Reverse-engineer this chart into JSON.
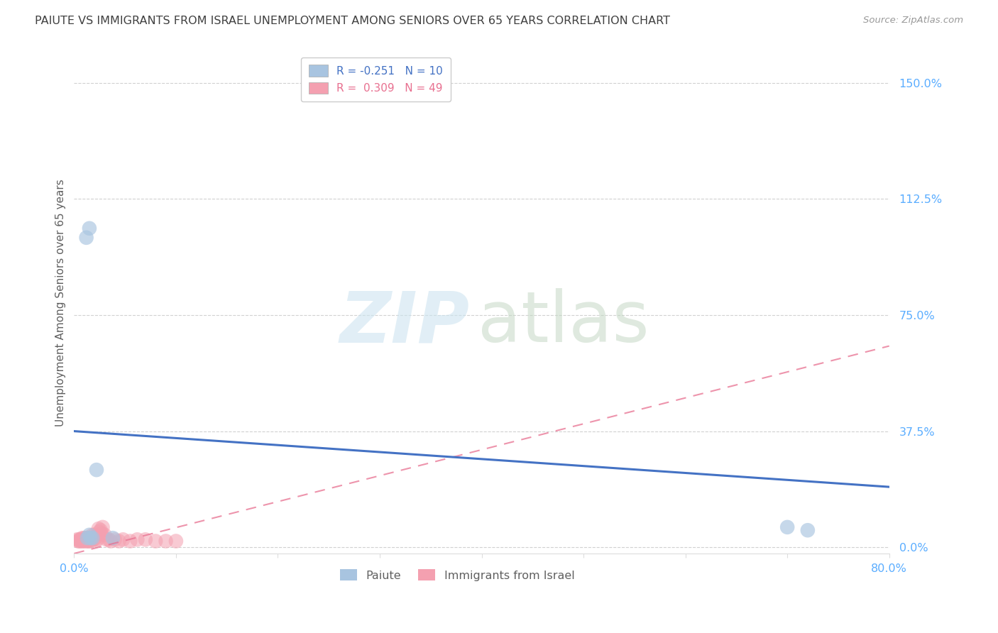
{
  "title": "PAIUTE VS IMMIGRANTS FROM ISRAEL UNEMPLOYMENT AMONG SENIORS OVER 65 YEARS CORRELATION CHART",
  "source": "Source: ZipAtlas.com",
  "ylabel": "Unemployment Among Seniors over 65 years",
  "ytick_labels": [
    "0.0%",
    "37.5%",
    "75.0%",
    "112.5%",
    "150.0%"
  ],
  "ytick_values": [
    0.0,
    0.375,
    0.75,
    1.125,
    1.5
  ],
  "xlim": [
    0.0,
    0.8
  ],
  "ylim": [
    -0.02,
    1.6
  ],
  "paiute_R": -0.251,
  "paiute_N": 10,
  "israel_R": 0.309,
  "israel_N": 49,
  "paiute_color": "#a8c4e0",
  "israel_color": "#f4a0b0",
  "trendline_paiute_color": "#4472c4",
  "trendline_israel_color": "#e87090",
  "background_color": "#ffffff",
  "grid_color": "#cccccc",
  "title_color": "#404040",
  "axis_label_color": "#606060",
  "tick_color": "#5aadff",
  "paiute_scatter_x": [
    0.012,
    0.015,
    0.7,
    0.72,
    0.015,
    0.018,
    0.013,
    0.022,
    0.038,
    0.016
  ],
  "paiute_scatter_y": [
    1.0,
    1.03,
    0.065,
    0.055,
    0.04,
    0.03,
    0.03,
    0.25,
    0.03,
    0.03
  ],
  "israel_scatter_x": [
    0.003,
    0.004,
    0.005,
    0.005,
    0.006,
    0.006,
    0.007,
    0.008,
    0.008,
    0.009,
    0.009,
    0.01,
    0.01,
    0.011,
    0.011,
    0.012,
    0.012,
    0.013,
    0.013,
    0.014,
    0.014,
    0.015,
    0.015,
    0.016,
    0.017,
    0.018,
    0.019,
    0.02,
    0.021,
    0.022,
    0.023,
    0.024,
    0.025,
    0.026,
    0.027,
    0.028,
    0.03,
    0.032,
    0.034,
    0.036,
    0.04,
    0.044,
    0.048,
    0.055,
    0.062,
    0.07,
    0.08,
    0.09,
    0.1
  ],
  "israel_scatter_y": [
    0.025,
    0.02,
    0.02,
    0.025,
    0.02,
    0.025,
    0.025,
    0.02,
    0.03,
    0.02,
    0.025,
    0.025,
    0.03,
    0.02,
    0.025,
    0.03,
    0.025,
    0.02,
    0.03,
    0.02,
    0.025,
    0.025,
    0.02,
    0.025,
    0.02,
    0.04,
    0.025,
    0.04,
    0.03,
    0.025,
    0.025,
    0.06,
    0.05,
    0.055,
    0.045,
    0.065,
    0.04,
    0.025,
    0.025,
    0.02,
    0.025,
    0.02,
    0.025,
    0.02,
    0.025,
    0.025,
    0.02,
    0.02,
    0.02
  ],
  "paiute_trend_x": [
    0.0,
    0.8
  ],
  "paiute_trend_y": [
    0.375,
    0.195
  ],
  "israel_trend_x": [
    0.0,
    0.8
  ],
  "israel_trend_y": [
    -0.02,
    0.65
  ],
  "legend_paiute_label": "R = -0.251   N = 10",
  "legend_israel_label": "R =  0.309   N = 49",
  "bottom_legend_paiute": "Paiute",
  "bottom_legend_israel": "Immigrants from Israel"
}
